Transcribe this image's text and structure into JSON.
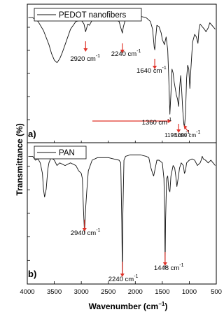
{
  "chart_data": {
    "type": "line",
    "xlabel": "Wavenumber (cm",
    "xlabel_sup": "−1",
    "xlabel_suffix": ")",
    "ylabel": "Transmittance (%)",
    "xlim": [
      4000,
      500
    ],
    "xticks": [
      "4000",
      "3500",
      "3000",
      "2500",
      "2000",
      "1500",
      "1000",
      "500"
    ],
    "colors": {
      "line": "#111111",
      "arrow": "#e0342b",
      "axis": "#000000"
    },
    "panels": [
      {
        "label": "a)",
        "legend": "PEDOT nanofibers",
        "series": {
          "name": "PEDOT nanofibers",
          "x": [
            3980,
            3900,
            3800,
            3700,
            3600,
            3550,
            3500,
            3450,
            3400,
            3350,
            3300,
            3200,
            3100,
            3000,
            2950,
            2920,
            2880,
            2850,
            2800,
            2700,
            2600,
            2500,
            2400,
            2350,
            2300,
            2260,
            2240,
            2220,
            2180,
            2100,
            2000,
            1900,
            1800,
            1720,
            1680,
            1650,
            1640,
            1625,
            1600,
            1560,
            1520,
            1500,
            1460,
            1430,
            1400,
            1380,
            1360,
            1340,
            1320,
            1300,
            1280,
            1260,
            1240,
            1220,
            1198,
            1180,
            1160,
            1140,
            1120,
            1100,
            1090,
            1070,
            1050,
            1030,
            1010,
            990,
            970,
            940,
            900,
            870,
            840,
            820,
            800,
            760,
            720,
            690,
            650,
            620,
            600,
            560,
            520
          ],
          "y": [
            0.95,
            0.95,
            0.92,
            0.85,
            0.74,
            0.67,
            0.62,
            0.6,
            0.63,
            0.68,
            0.74,
            0.86,
            0.92,
            0.93,
            0.9,
            0.84,
            0.9,
            0.89,
            0.93,
            0.95,
            0.95,
            0.95,
            0.94,
            0.93,
            0.92,
            0.86,
            0.83,
            0.88,
            0.94,
            0.96,
            0.96,
            0.96,
            0.95,
            0.92,
            0.86,
            0.72,
            0.7,
            0.78,
            0.89,
            0.88,
            0.83,
            0.78,
            0.74,
            0.8,
            0.7,
            0.48,
            0.2,
            0.36,
            0.55,
            0.52,
            0.45,
            0.4,
            0.35,
            0.32,
            0.26,
            0.4,
            0.5,
            0.38,
            0.22,
            0.12,
            0.1,
            0.2,
            0.48,
            0.58,
            0.55,
            0.4,
            0.55,
            0.76,
            0.82,
            0.8,
            0.75,
            0.86,
            0.9,
            0.88,
            0.86,
            0.84,
            0.87,
            0.91,
            0.9,
            0.88,
            0.86
          ]
        },
        "annotations": [
          {
            "text": "2920 cm",
            "sup": "-1",
            "x": 2920
          },
          {
            "text": "2240 cm",
            "sup": "-1",
            "x": 2240
          },
          {
            "text": "1640 cm",
            "sup": "-1",
            "x": 1640
          },
          {
            "text": "1360 cm",
            "sup": "-1",
            "x": 1360
          },
          {
            "text": "1198 cm",
            "sup": "-1",
            "x": 1198
          },
          {
            "text": "1090 cm",
            "sup": "-1",
            "x": 1090
          }
        ]
      },
      {
        "label": "b)",
        "legend": "PAN",
        "series": {
          "name": "PAN",
          "x": [
            3980,
            3900,
            3850,
            3800,
            3760,
            3720,
            3700,
            3680,
            3650,
            3620,
            3600,
            3560,
            3500,
            3450,
            3400,
            3300,
            3200,
            3100,
            3050,
            3000,
            2980,
            2960,
            2940,
            2920,
            2900,
            2870,
            2800,
            2700,
            2600,
            2500,
            2400,
            2300,
            2270,
            2250,
            2240,
            2230,
            2210,
            2180,
            2100,
            2000,
            1900,
            1800,
            1750,
            1730,
            1710,
            1680,
            1660,
            1630,
            1600,
            1560,
            1500,
            1470,
            1455,
            1448,
            1440,
            1420,
            1400,
            1380,
            1360,
            1340,
            1300,
            1270,
            1250,
            1230,
            1200,
            1180,
            1150,
            1110,
            1090,
            1070,
            1050,
            1000,
            950,
            900,
            850,
            800,
            780,
            760,
            740,
            700,
            650,
            600,
            560,
            520
          ],
          "y": [
            0.95,
            0.95,
            0.92,
            0.93,
            0.9,
            0.82,
            0.7,
            0.64,
            0.7,
            0.85,
            0.9,
            0.94,
            0.92,
            0.88,
            0.9,
            0.88,
            0.9,
            0.88,
            0.84,
            0.82,
            0.78,
            0.55,
            0.36,
            0.55,
            0.68,
            0.84,
            0.92,
            0.94,
            0.94,
            0.94,
            0.93,
            0.92,
            0.9,
            0.45,
            0.04,
            0.5,
            0.92,
            0.95,
            0.96,
            0.96,
            0.96,
            0.95,
            0.94,
            0.9,
            0.86,
            0.82,
            0.8,
            0.86,
            0.92,
            0.92,
            0.9,
            0.78,
            0.5,
            0.1,
            0.45,
            0.78,
            0.8,
            0.7,
            0.68,
            0.8,
            0.88,
            0.86,
            0.8,
            0.72,
            0.8,
            0.86,
            0.9,
            0.88,
            0.82,
            0.84,
            0.9,
            0.92,
            0.93,
            0.92,
            0.88,
            0.9,
            0.92,
            0.95,
            0.93,
            0.92,
            0.9,
            0.92,
            0.9,
            0.88
          ]
        },
        "annotations": [
          {
            "text": "2940 cm",
            "sup": "-1",
            "x": 2940
          },
          {
            "text": "2240 cm",
            "sup": "-1",
            "x": 2240
          },
          {
            "text": "1448 cm",
            "sup": "-1",
            "x": 1448
          }
        ]
      }
    ]
  }
}
